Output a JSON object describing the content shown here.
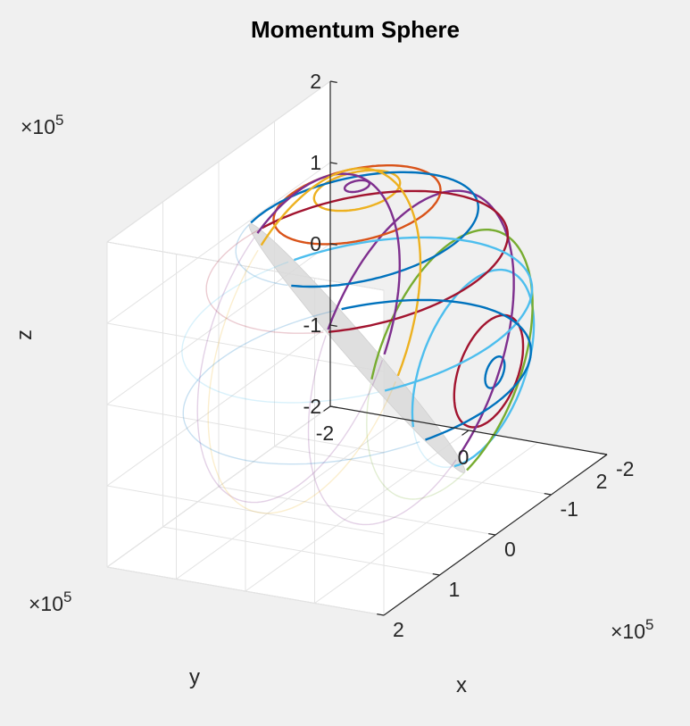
{
  "chart_data": {
    "type": "line",
    "title": "Momentum Sphere",
    "xlabel": "x",
    "ylabel": "y",
    "zlabel": "z",
    "axis_exponent": {
      "base": "×10",
      "power": "5"
    },
    "xlim": [
      -2,
      2
    ],
    "ylim": [
      -2,
      2
    ],
    "zlim": [
      -2,
      2
    ],
    "x_ticks": [
      "-2",
      "0",
      "2"
    ],
    "y_ticks": [
      "-2",
      "-1",
      "0",
      "1",
      "2"
    ],
    "z_ticks": [
      "-2",
      "-1",
      "0",
      "1",
      "2"
    ],
    "grid": true,
    "surface": {
      "kind": "sphere",
      "radius": 2,
      "color": "#d9d9d9",
      "opacity": 0.85
    },
    "colors": {
      "blue": "#0072bd",
      "orange": "#d95319",
      "yellow": "#edb120",
      "purple": "#7e2f8e",
      "green": "#77ac30",
      "lightblue": "#4dbeee",
      "red": "#a2142f"
    },
    "trajectories": [
      {
        "color": "blue",
        "axis": [
          1,
          0,
          0
        ],
        "angle": 5
      },
      {
        "color": "red",
        "axis": [
          1,
          0,
          0
        ],
        "angle": 18
      },
      {
        "color": "lightblue",
        "axis": [
          1,
          0,
          0
        ],
        "angle": 33
      },
      {
        "color": "green",
        "axis": [
          1,
          0,
          0
        ],
        "angle": 48
      },
      {
        "color": "purple",
        "axis": [
          1,
          0,
          0
        ],
        "angle": 67
      },
      {
        "color": "purple",
        "axis": [
          0,
          0,
          1
        ],
        "angle": 4
      },
      {
        "color": "yellow",
        "axis": [
          0,
          0,
          1
        ],
        "angle": 14
      },
      {
        "color": "orange",
        "axis": [
          0,
          0,
          1
        ],
        "angle": 28
      },
      {
        "color": "blue",
        "axis": [
          0,
          0,
          1
        ],
        "angle": 43
      },
      {
        "color": "red",
        "axis": [
          0,
          0,
          1
        ],
        "angle": 58
      },
      {
        "color": "lightblue",
        "axis": [
          0,
          0,
          1
        ],
        "angle": 80
      },
      {
        "color": "purple",
        "axis": [
          -1,
          0,
          0
        ],
        "angle": 65
      },
      {
        "color": "yellow",
        "axis": [
          -1,
          0,
          0
        ],
        "angle": 72
      },
      {
        "color": "blue",
        "axis": [
          0,
          0,
          -1
        ],
        "angle": 78
      }
    ]
  }
}
